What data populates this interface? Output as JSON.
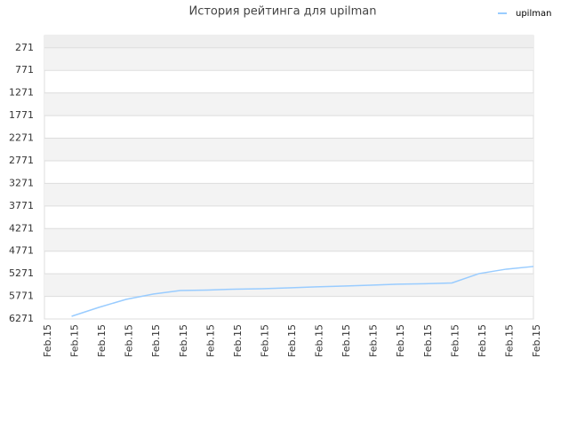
{
  "chart_data": {
    "type": "line",
    "title": "История рейтинга для upilman",
    "categories": [
      "Feb.15",
      "Feb.15",
      "Feb.15",
      "Feb.15",
      "Feb.15",
      "Feb.15",
      "Feb.15",
      "Feb.15",
      "Feb.15",
      "Feb.15",
      "Feb.15",
      "Feb.15",
      "Feb.15",
      "Feb.15",
      "Feb.15",
      "Feb.15",
      "Feb.15",
      "Feb.15",
      "Feb.15"
    ],
    "series": [
      {
        "name": "upilman",
        "color": "#99ccff",
        "values": [
          null,
          6212,
          6015,
          5838,
          5720,
          5641,
          5631,
          5612,
          5602,
          5582,
          5562,
          5543,
          5523,
          5503,
          5493,
          5474,
          5267,
          5169,
          5110
        ]
      }
    ],
    "ylim": [
      6271,
      0
    ],
    "yticks": [
      271,
      771,
      1271,
      1771,
      2271,
      2771,
      3271,
      3771,
      4271,
      4771,
      5271,
      5771,
      6271
    ],
    "grid": true,
    "legend": "top-right"
  }
}
